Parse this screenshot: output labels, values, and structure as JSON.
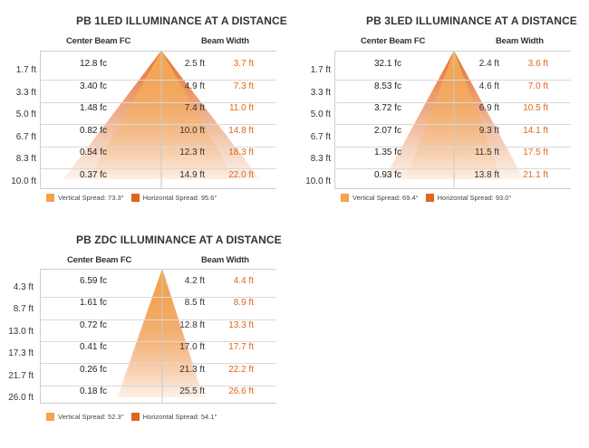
{
  "colors": {
    "vertical_spread": "#f5a24a",
    "horizontal_spread": "#e0651e",
    "horizontal_text": "#e2661b"
  },
  "chart_data": [
    {
      "type": "table",
      "title": "PB  1LED ILLUMINANCE AT A DISTANCE",
      "center_beam_header": "Center Beam FC",
      "beam_width_header": "Beam Width",
      "distances": [
        "1.7 ft",
        "3.3 ft",
        "5.0 ft",
        "6.7 ft",
        "8.3 ft",
        "10.0 ft"
      ],
      "center_beam_fc": [
        "12.8 fc",
        "3.40 fc",
        "1.48 fc",
        "0.82 fc",
        "0.54 fc",
        "0.37 fc"
      ],
      "beam_width_vertical": [
        "2.5 ft",
        "4.9 ft",
        "7.4 ft",
        "10.0 ft",
        "12.3 ft",
        "14.9 ft"
      ],
      "beam_width_horizontal": [
        "3.7 ft",
        "7.3 ft",
        "11.0 ft",
        "14.8 ft",
        "18.3 ft",
        "22.0 ft"
      ],
      "vertical_spread_label": "Vertical Spread: 73.3°",
      "horizontal_spread_label": "Horizontal Spread: 95.6°",
      "vertical_spread_deg": 73.3,
      "horizontal_spread_deg": 95.6
    },
    {
      "type": "table",
      "title": "PB  3LED ILLUMINANCE AT A DISTANCE",
      "center_beam_header": "Center Beam FC",
      "beam_width_header": "Beam Width",
      "distances": [
        "1.7 ft",
        "3.3 ft",
        "5.0 ft",
        "6.7 ft",
        "8.3 ft",
        "10.0 ft"
      ],
      "center_beam_fc": [
        "32.1 fc",
        "8.53 fc",
        "3.72 fc",
        "2.07 fc",
        "1.35 fc",
        "0.93 fc"
      ],
      "beam_width_vertical": [
        "2.4 ft",
        "4.6 ft",
        "6.9 ft",
        "9.3 ft",
        "11.5 ft",
        "13.8 ft"
      ],
      "beam_width_horizontal": [
        "3.6 ft",
        "7.0 ft",
        "10.5 ft",
        "14.1 ft",
        "17.5 ft",
        "21.1 ft"
      ],
      "vertical_spread_label": "Vertical Spread: 69.4°",
      "horizontal_spread_label": "Horizontal Spread: 93.0°",
      "vertical_spread_deg": 69.4,
      "horizontal_spread_deg": 93.0
    },
    {
      "type": "table",
      "title": "PB  ZDC ILLUMINANCE AT A DISTANCE",
      "center_beam_header": "Center Beam FC",
      "beam_width_header": "Beam Width",
      "distances": [
        "4.3 ft",
        "8.7 ft",
        "13.0 ft",
        "17.3 ft",
        "21.7 ft",
        "26.0 ft"
      ],
      "center_beam_fc": [
        "6.59 fc",
        "1.61 fc",
        "0.72 fc",
        "0.41 fc",
        "0.26 fc",
        "0.18 fc"
      ],
      "beam_width_vertical": [
        "4.2 ft",
        "8.5 ft",
        "12.8 ft",
        "17.0 ft",
        "21.3 ft",
        "25.5 ft"
      ],
      "beam_width_horizontal": [
        "4.4 ft",
        "8.9 ft",
        "13.3 ft",
        "17.7 ft",
        "22.2 ft",
        "26.6 ft"
      ],
      "vertical_spread_label": "Vertical Spread: 52.3°",
      "horizontal_spread_label": "Horizontal Spread: 54.1°",
      "vertical_spread_deg": 52.3,
      "horizontal_spread_deg": 54.1
    }
  ]
}
